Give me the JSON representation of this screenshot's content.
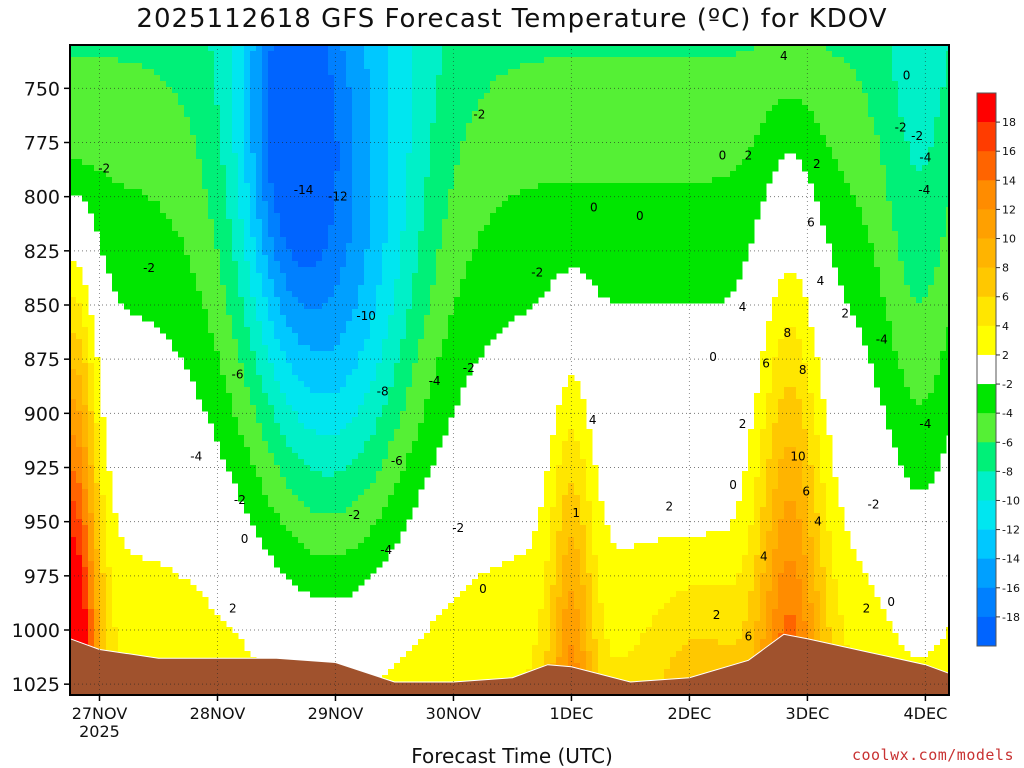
{
  "chart_data": {
    "type": "heatmap",
    "title": "2025112618 GFS Forecast Temperature (ºC) for KDOV",
    "xlabel": "Forecast Time (UTC)",
    "ylabel": "",
    "y_axis": {
      "ticks": [
        750,
        775,
        800,
        825,
        850,
        875,
        900,
        925,
        950,
        975,
        1000,
        1025
      ],
      "range": [
        730,
        1030
      ],
      "inverted": true
    },
    "x_axis": {
      "ticks": [
        "27NOV",
        "28NOV",
        "29NOV",
        "30NOV",
        "1DEC",
        "2DEC",
        "3DEC",
        "4DEC"
      ],
      "sublabel": "2025",
      "range_days": [
        26.75,
        34.2
      ]
    },
    "grid": true,
    "colorbar": {
      "labels": [
        18,
        16,
        14,
        12,
        10,
        8,
        6,
        4,
        2,
        -2,
        -4,
        -6,
        -8,
        -10,
        -12,
        -14,
        -16,
        -18
      ],
      "colors": [
        "#ff0000",
        "#ff3c00",
        "#ff6400",
        "#ff8c00",
        "#ffa000",
        "#ffb400",
        "#ffc800",
        "#ffe600",
        "#ffff00",
        "#ffffff",
        "#00e600",
        "#55f035",
        "#00f078",
        "#00f0c8",
        "#00e6f0",
        "#00c8ff",
        "#00a0ff",
        "#0080ff",
        "#0064ff"
      ]
    },
    "surface_pressure": [
      {
        "day": 26.75,
        "p": 1004
      },
      {
        "day": 27.0,
        "p": 1009
      },
      {
        "day": 27.5,
        "p": 1013
      },
      {
        "day": 28.0,
        "p": 1013
      },
      {
        "day": 28.5,
        "p": 1013
      },
      {
        "day": 29.0,
        "p": 1015
      },
      {
        "day": 29.5,
        "p": 1024
      },
      {
        "day": 30.0,
        "p": 1024
      },
      {
        "day": 30.5,
        "p": 1022
      },
      {
        "day": 30.8,
        "p": 1016
      },
      {
        "day": 31.0,
        "p": 1017
      },
      {
        "day": 31.5,
        "p": 1024
      },
      {
        "day": 32.0,
        "p": 1022
      },
      {
        "day": 32.5,
        "p": 1014
      },
      {
        "day": 32.8,
        "p": 1002
      },
      {
        "day": 33.0,
        "p": 1004
      },
      {
        "day": 33.5,
        "p": 1010
      },
      {
        "day": 34.0,
        "p": 1016
      },
      {
        "day": 34.2,
        "p": 1020
      }
    ],
    "contour_labels": [
      {
        "text": "-14",
        "day": 28.73,
        "p": 797
      },
      {
        "text": "-12",
        "day": 29.02,
        "p": 800
      },
      {
        "text": "-10",
        "day": 29.26,
        "p": 855
      },
      {
        "text": "-8",
        "day": 29.4,
        "p": 890
      },
      {
        "text": "-6",
        "day": 29.52,
        "p": 922
      },
      {
        "text": "-6",
        "day": 28.17,
        "p": 882
      },
      {
        "text": "-4",
        "day": 29.43,
        "p": 963
      },
      {
        "text": "-4",
        "day": 27.82,
        "p": 920
      },
      {
        "text": "-4",
        "day": 29.84,
        "p": 885
      },
      {
        "text": "-2",
        "day": 27.42,
        "p": 833
      },
      {
        "text": "-2",
        "day": 28.19,
        "p": 940
      },
      {
        "text": "-2",
        "day": 29.16,
        "p": 947
      },
      {
        "text": "-2",
        "day": 30.04,
        "p": 953
      },
      {
        "text": "-2",
        "day": 30.13,
        "p": 879
      },
      {
        "text": "-2",
        "day": 30.22,
        "p": 762
      },
      {
        "text": "-2",
        "day": 30.71,
        "p": 835
      },
      {
        "text": "-2",
        "day": 27.04,
        "p": 787
      },
      {
        "text": "0",
        "day": 28.23,
        "p": 958
      },
      {
        "text": "0",
        "day": 30.25,
        "p": 981
      },
      {
        "text": "0",
        "day": 31.19,
        "p": 805
      },
      {
        "text": "0",
        "day": 31.58,
        "p": 809
      },
      {
        "text": "0",
        "day": 32.2,
        "p": 874
      },
      {
        "text": "0",
        "day": 32.37,
        "p": 933
      },
      {
        "text": "0",
        "day": 32.28,
        "p": 781
      },
      {
        "text": "0",
        "day": 33.84,
        "p": 744
      },
      {
        "text": "0",
        "day": 33.71,
        "p": 987
      },
      {
        "text": "2",
        "day": 28.13,
        "p": 990
      },
      {
        "text": "2",
        "day": 32.5,
        "p": 781
      },
      {
        "text": "2",
        "day": 32.45,
        "p": 905
      },
      {
        "text": "2",
        "day": 31.83,
        "p": 943
      },
      {
        "text": "2",
        "day": 32.23,
        "p": 993
      },
      {
        "text": "2",
        "day": 33.08,
        "p": 785
      },
      {
        "text": "2",
        "day": 33.5,
        "p": 990
      },
      {
        "text": "2",
        "day": 33.32,
        "p": 854
      },
      {
        "text": "1",
        "day": 31.04,
        "p": 946
      },
      {
        "text": "4",
        "day": 31.18,
        "p": 903
      },
      {
        "text": "4",
        "day": 32.45,
        "p": 851
      },
      {
        "text": "4",
        "day": 32.63,
        "p": 966
      },
      {
        "text": "4",
        "day": 33.11,
        "p": 839
      },
      {
        "text": "4",
        "day": 33.09,
        "p": 950
      },
      {
        "text": "4",
        "day": 32.8,
        "p": 735
      },
      {
        "text": "6",
        "day": 32.5,
        "p": 1003
      },
      {
        "text": "6",
        "day": 32.65,
        "p": 877
      },
      {
        "text": "6",
        "day": 32.99,
        "p": 936
      },
      {
        "text": "6",
        "day": 33.03,
        "p": 812
      },
      {
        "text": "8",
        "day": 32.83,
        "p": 863
      },
      {
        "text": "8",
        "day": 32.96,
        "p": 880
      },
      {
        "text": "10",
        "day": 32.92,
        "p": 920
      },
      {
        "text": "-4",
        "day": 33.63,
        "p": 866
      },
      {
        "text": "-4",
        "day": 34.0,
        "p": 905
      },
      {
        "text": "-4",
        "day": 34.0,
        "p": 782
      },
      {
        "text": "-4",
        "day": 33.99,
        "p": 797
      },
      {
        "text": "-2",
        "day": 33.79,
        "p": 768
      },
      {
        "text": "-2",
        "day": 33.56,
        "p": 942
      },
      {
        "text": "-2",
        "day": 33.93,
        "p": 772
      }
    ]
  },
  "credit": "coolwx.com/models"
}
